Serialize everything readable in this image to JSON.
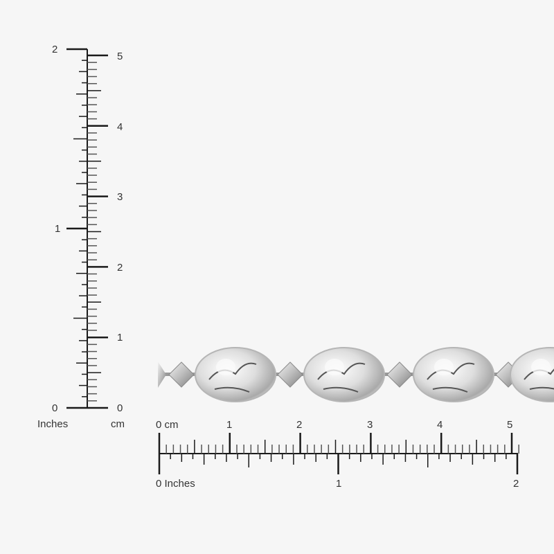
{
  "vertical_ruler": {
    "inch_labels": [
      "0",
      "1",
      "2"
    ],
    "cm_labels": [
      "0",
      "1",
      "2",
      "3",
      "4",
      "5"
    ],
    "inch_unit": "Inches",
    "cm_unit": "cm"
  },
  "horizontal_ruler": {
    "cm_labels": [
      "0 cm",
      "1",
      "2",
      "3",
      "4",
      "5"
    ],
    "inch_labels": [
      "0 Inches",
      "1",
      "2"
    ]
  },
  "product": {
    "type": "silver coin-bead bracelet",
    "metal_color": "#c8c8c8"
  }
}
